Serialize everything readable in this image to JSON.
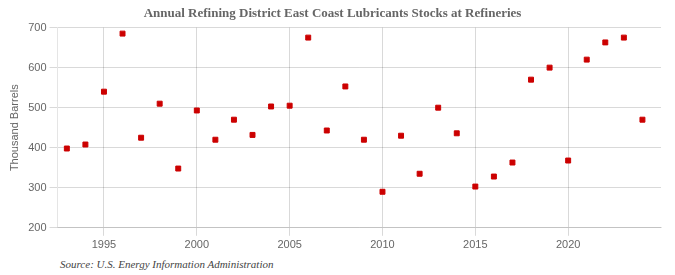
{
  "chart_data": {
    "type": "scatter",
    "title": "Annual Refining District East Coast Lubricants Stocks at Refineries",
    "ylabel": "Thousand Barrels",
    "annotation": "Source: U.S. Energy Information Administration",
    "x": [
      1993,
      1994,
      1995,
      1996,
      1997,
      1998,
      1999,
      2000,
      2001,
      2002,
      2003,
      2004,
      2005,
      2006,
      2007,
      2008,
      2009,
      2010,
      2011,
      2012,
      2013,
      2014,
      2015,
      2016,
      2017,
      2018,
      2019,
      2020,
      2021,
      2022,
      2023,
      2024
    ],
    "values": [
      398,
      408,
      540,
      685,
      425,
      510,
      348,
      493,
      420,
      470,
      432,
      503,
      505,
      675,
      443,
      553,
      420,
      290,
      430,
      335,
      500,
      436,
      303,
      328,
      363,
      570,
      600,
      368,
      620,
      663,
      675,
      470
    ],
    "color": "#cc0000",
    "marker": "square",
    "xlim": [
      1992.5,
      2025
    ],
    "ylim": [
      200,
      700
    ],
    "xticks": [
      1995,
      2000,
      2005,
      2010,
      2015,
      2020
    ],
    "yticks": [
      200,
      300,
      400,
      500,
      600,
      700
    ],
    "grid": true
  }
}
